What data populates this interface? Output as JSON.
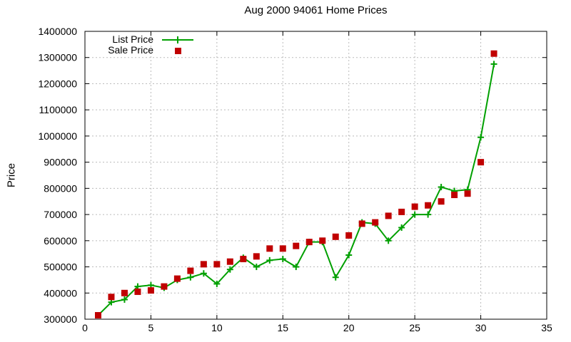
{
  "chart_data": {
    "type": "line",
    "title": "Aug 2000 94061 Home Prices",
    "xlabel": "",
    "ylabel": "Price",
    "xlim": [
      0,
      35
    ],
    "ylim": [
      300000,
      1400000
    ],
    "x_ticks": [
      0,
      5,
      10,
      15,
      20,
      25,
      30,
      35
    ],
    "y_ticks": [
      300000,
      400000,
      500000,
      600000,
      700000,
      800000,
      900000,
      1000000,
      1100000,
      1200000,
      1300000,
      1400000
    ],
    "grid": "dashed",
    "grid_color": "#bbbbbb",
    "text_color": "#000000",
    "background": "#ffffff",
    "legend_position": "top-left-inside",
    "x": [
      1,
      2,
      3,
      4,
      5,
      6,
      7,
      8,
      9,
      10,
      11,
      12,
      13,
      14,
      15,
      16,
      17,
      18,
      19,
      20,
      21,
      22,
      23,
      24,
      25,
      26,
      27,
      28,
      29,
      30,
      31
    ],
    "series": [
      {
        "name": "List Price",
        "marker": "cross",
        "style": "line-with-markers",
        "color": "#00a000",
        "values": [
          315000,
          365000,
          375000,
          425000,
          430000,
          420000,
          450000,
          460000,
          475000,
          435000,
          490000,
          535000,
          500000,
          525000,
          530000,
          500000,
          595000,
          595000,
          460000,
          545000,
          670000,
          665000,
          600000,
          650000,
          700000,
          700000,
          805000,
          790000,
          795000,
          995000,
          1275000
        ]
      },
      {
        "name": "Sale Price",
        "marker": "square",
        "style": "markers-only",
        "color": "#c00000",
        "values": [
          315000,
          385000,
          400000,
          405000,
          410000,
          425000,
          455000,
          485000,
          510000,
          510000,
          520000,
          530000,
          540000,
          570000,
          570000,
          580000,
          595000,
          600000,
          615000,
          620000,
          665000,
          670000,
          695000,
          710000,
          730000,
          735000,
          750000,
          775000,
          780000,
          900000,
          1315000
        ]
      }
    ]
  }
}
